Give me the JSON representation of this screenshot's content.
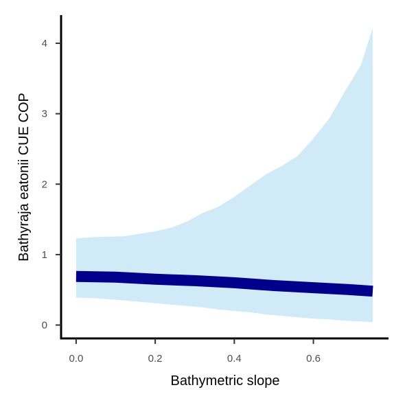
{
  "chart_data": {
    "type": "line",
    "xlabel": "Bathymetric slope",
    "ylabel": "Bathyraja eatonii  CUE COP",
    "xlim": [
      -0.038,
      0.79
    ],
    "ylim": [
      -0.19,
      4.4
    ],
    "x_ticks": [
      0.0,
      0.2,
      0.4,
      0.6
    ],
    "x_tick_labels": [
      "0.0",
      "0.2",
      "0.4",
      "0.6"
    ],
    "y_ticks": [
      0,
      1,
      2,
      3,
      4
    ],
    "y_tick_labels": [
      "0",
      "1",
      "2",
      "3",
      "4"
    ],
    "grid": false,
    "series": [
      {
        "role": "fit",
        "color": "#00008b",
        "x": [
          0.0,
          0.1,
          0.2,
          0.3,
          0.4,
          0.5,
          0.6,
          0.7,
          0.75
        ],
        "y": [
          0.69,
          0.68,
          0.65,
          0.63,
          0.6,
          0.56,
          0.53,
          0.5,
          0.48
        ]
      },
      {
        "role": "confidence-band",
        "color": "#d1eaf7",
        "x": [
          0.0,
          0.05,
          0.12,
          0.2,
          0.24,
          0.28,
          0.32,
          0.36,
          0.4,
          0.44,
          0.48,
          0.52,
          0.56,
          0.6,
          0.64,
          0.68,
          0.72,
          0.75
        ],
        "upper": [
          1.23,
          1.25,
          1.26,
          1.33,
          1.38,
          1.47,
          1.59,
          1.68,
          1.82,
          1.98,
          2.14,
          2.26,
          2.4,
          2.65,
          2.93,
          3.32,
          3.69,
          4.22
        ],
        "lower": [
          0.39,
          0.38,
          0.35,
          0.31,
          0.29,
          0.27,
          0.25,
          0.22,
          0.2,
          0.18,
          0.15,
          0.13,
          0.11,
          0.09,
          0.08,
          0.06,
          0.05,
          0.04
        ]
      }
    ]
  }
}
